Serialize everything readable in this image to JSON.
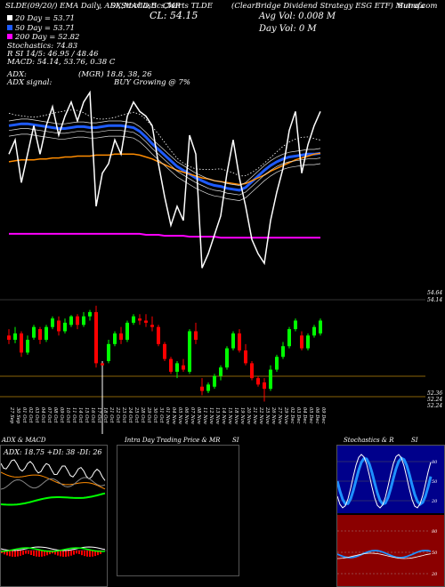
{
  "header": {
    "top_left": "SLDE(09/20/) EMA Daily, ADX,MACD,B",
    "top_mid": "SI,Stochastics,MR",
    "top_company": "Charts TLDE",
    "top_right_1": "(ClearBridge  Dividend Strategy ESG ETF) Munafa",
    "top_right_2": "Sutra.com",
    "cl_label": "CL: 54.15",
    "avg_vol": "Avg Vol: 0.008  M",
    "day_vol": "Day Vol: 0   M"
  },
  "legend": {
    "ema20": "20  Day = 53.71",
    "ema50": "50  Day = 53.71",
    "ema200": "200  Day = 52.82",
    "stochastics": "Stochastics: 74.83",
    "rsi": "R             SI 14/5: 46.95 / 48.46",
    "macd": "MACD: 54.14,  53.76,  0.38  C"
  },
  "adx_block": {
    "adx_label": "ADX:",
    "adx_mgr": "(MGR) 18.8,  38,  26",
    "signal_label": "ADX  signal:",
    "signal_value": "BUY Growing @ 7%"
  },
  "levels": {
    "top_right_1": "54.64",
    "top_right_2": "54.14",
    "bottom_right_1": "52.36",
    "bottom_right_2": "52.24",
    "bottom_right_3": "52.24"
  },
  "dates": [
    "27 Sep",
    "30 Sep",
    "01 Oct",
    "02 Oct",
    "03 Oct",
    "04 Oct",
    "07 Oct",
    "08 Oct",
    "09 Oct",
    "10 Oct",
    "11 Oct",
    "14 Oct",
    "15 Oct",
    "16 Oct",
    "17 Oct",
    "18 Oct",
    "21 Oct",
    "22 Oct",
    "23 Oct",
    "24 Oct",
    "25 Oct",
    "28 Oct",
    "29 Oct",
    "30 Oct",
    "31 Oct",
    "01 Nov",
    "04 Nov",
    "05 Nov",
    "06 Nov",
    "07 Nov",
    "08 Nov",
    "11 Nov",
    "12 Nov",
    "13 Nov",
    "14 Nov",
    "15 Nov",
    "18 Nov",
    "19 Nov",
    "20 Nov",
    "21 Nov",
    "22 Nov",
    "25 Nov",
    "26 Nov",
    "27 Nov",
    "29 Nov",
    "02 Dec",
    "03 Dec",
    "04 Dec",
    "05 Dec",
    "06 Dec",
    "09 Dec"
  ],
  "panels": {
    "adx_title": "ADX  & MACD",
    "adx_values": "ADX: 18.75  +DI: 38  -DI: 26",
    "intra_title": "Intra  Day Trading Price  & MR",
    "intra_si": "SI",
    "stoch_title": "Stochastics & R",
    "stoch_si": "SI",
    "stoch_ticks": [
      "80",
      "50",
      "20"
    ],
    "rsi_ticks": [
      "80",
      "50",
      "20"
    ]
  },
  "colors": {
    "up": "#00ff00",
    "down": "#ff0000",
    "ema_short": "#ffffff",
    "ema_mid": "#1e5bff",
    "ema_long": "#ff8c00",
    "ema_200": "#ff00ff",
    "level_line": "#b8860b",
    "rsi_bg": "#8b0000"
  },
  "chart_data": {
    "type": "candlestick",
    "series": [
      {
        "name": "20  Day",
        "values": [
          54.0,
          54.01,
          54.02,
          54.02,
          54.01,
          54.0,
          53.99,
          53.98,
          53.97,
          53.97,
          53.98,
          53.99,
          53.99,
          53.98,
          53.98,
          53.99,
          54.0,
          54.0,
          54.0,
          53.99,
          53.98,
          53.94,
          53.88,
          53.81,
          53.75,
          53.69,
          53.63,
          53.57,
          53.53,
          53.49,
          53.45,
          53.42,
          53.39,
          53.37,
          53.36,
          53.34,
          53.33,
          53.32,
          53.35,
          53.41,
          53.47,
          53.53,
          53.58,
          53.62,
          53.65,
          53.67,
          53.68,
          53.69,
          53.7,
          53.7,
          53.71
        ]
      },
      {
        "name": "50  Day",
        "values": [
          53.62,
          53.63,
          53.64,
          53.64,
          53.64,
          53.65,
          53.65,
          53.66,
          53.66,
          53.67,
          53.67,
          53.68,
          53.68,
          53.68,
          53.69,
          53.69,
          53.69,
          53.7,
          53.7,
          53.7,
          53.7,
          53.69,
          53.67,
          53.65,
          53.62,
          53.59,
          53.56,
          53.53,
          53.51,
          53.49,
          53.47,
          53.45,
          53.44,
          53.42,
          53.41,
          53.4,
          53.39,
          53.38,
          53.39,
          53.42,
          53.45,
          53.48,
          53.52,
          53.55,
          53.58,
          53.61,
          53.64,
          53.66,
          53.68,
          53.7,
          53.71
        ]
      },
      {
        "name": "200  Day",
        "values": [
          52.86,
          52.86,
          52.86,
          52.86,
          52.86,
          52.86,
          52.86,
          52.86,
          52.86,
          52.86,
          52.86,
          52.86,
          52.86,
          52.86,
          52.86,
          52.86,
          52.86,
          52.86,
          52.86,
          52.86,
          52.86,
          52.86,
          52.85,
          52.85,
          52.85,
          52.84,
          52.84,
          52.84,
          52.84,
          52.83,
          52.83,
          52.83,
          52.83,
          52.83,
          52.82,
          52.82,
          52.82,
          52.82,
          52.82,
          52.82,
          52.82,
          52.82,
          52.82,
          52.82,
          52.82,
          52.82,
          52.82,
          52.82,
          52.82,
          52.82,
          52.82
        ]
      }
    ],
    "candles": [
      {
        "o": 53.8,
        "h": 53.95,
        "l": 53.6,
        "c": 53.7
      },
      {
        "o": 53.7,
        "h": 54.0,
        "l": 53.62,
        "c": 53.85
      },
      {
        "o": 53.85,
        "h": 53.9,
        "l": 53.3,
        "c": 53.4
      },
      {
        "o": 53.4,
        "h": 53.8,
        "l": 53.35,
        "c": 53.7
      },
      {
        "o": 53.75,
        "h": 54.05,
        "l": 53.7,
        "c": 54.0
      },
      {
        "o": 53.95,
        "h": 54.0,
        "l": 53.6,
        "c": 53.7
      },
      {
        "o": 53.7,
        "h": 54.05,
        "l": 53.65,
        "c": 54.0
      },
      {
        "o": 54.0,
        "h": 54.25,
        "l": 53.95,
        "c": 54.2
      },
      {
        "o": 54.15,
        "h": 54.25,
        "l": 53.8,
        "c": 53.9
      },
      {
        "o": 53.9,
        "h": 54.2,
        "l": 53.85,
        "c": 54.1
      },
      {
        "o": 54.05,
        "h": 54.28,
        "l": 54.0,
        "c": 54.25
      },
      {
        "o": 54.25,
        "h": 54.3,
        "l": 53.95,
        "c": 54.05
      },
      {
        "o": 54.05,
        "h": 54.35,
        "l": 54.0,
        "c": 54.25
      },
      {
        "o": 54.25,
        "h": 54.4,
        "l": 54.15,
        "c": 54.35
      },
      {
        "o": 54.35,
        "h": 54.5,
        "l": 53.05,
        "c": 53.15
      },
      {
        "o": 53.15,
        "h": 53.2,
        "l": 50.5,
        "c": 53.1
      },
      {
        "o": 53.2,
        "h": 53.7,
        "l": 53.15,
        "c": 53.6
      },
      {
        "o": 53.6,
        "h": 53.9,
        "l": 53.55,
        "c": 53.85
      },
      {
        "o": 53.85,
        "h": 54.0,
        "l": 53.6,
        "c": 53.7
      },
      {
        "o": 53.7,
        "h": 54.15,
        "l": 53.65,
        "c": 54.1
      },
      {
        "o": 54.1,
        "h": 54.3,
        "l": 54.05,
        "c": 54.25
      },
      {
        "o": 54.2,
        "h": 54.3,
        "l": 54.05,
        "c": 54.15
      },
      {
        "o": 54.15,
        "h": 54.3,
        "l": 54.0,
        "c": 54.1
      },
      {
        "o": 54.05,
        "h": 54.25,
        "l": 53.9,
        "c": 54.0
      },
      {
        "o": 54.0,
        "h": 54.05,
        "l": 53.55,
        "c": 53.6
      },
      {
        "o": 53.6,
        "h": 53.65,
        "l": 53.2,
        "c": 53.25
      },
      {
        "o": 53.25,
        "h": 53.3,
        "l": 52.9,
        "c": 52.95
      },
      {
        "o": 52.95,
        "h": 53.2,
        "l": 52.8,
        "c": 53.15
      },
      {
        "o": 53.1,
        "h": 53.25,
        "l": 52.95,
        "c": 53.0
      },
      {
        "o": 52.95,
        "h": 53.95,
        "l": 52.9,
        "c": 53.9
      },
      {
        "o": 53.9,
        "h": 54.1,
        "l": 53.6,
        "c": 53.7
      },
      {
        "o": 52.6,
        "h": 52.8,
        "l": 52.4,
        "c": 52.5
      },
      {
        "o": 52.5,
        "h": 52.7,
        "l": 52.45,
        "c": 52.65
      },
      {
        "o": 52.6,
        "h": 52.9,
        "l": 52.55,
        "c": 52.85
      },
      {
        "o": 52.85,
        "h": 53.1,
        "l": 52.75,
        "c": 53.05
      },
      {
        "o": 53.05,
        "h": 53.55,
        "l": 53.0,
        "c": 53.5
      },
      {
        "o": 53.5,
        "h": 53.9,
        "l": 53.45,
        "c": 53.85
      },
      {
        "o": 53.85,
        "h": 53.95,
        "l": 53.4,
        "c": 53.45
      },
      {
        "o": 53.45,
        "h": 53.6,
        "l": 53.1,
        "c": 53.15
      },
      {
        "o": 53.15,
        "h": 53.2,
        "l": 52.75,
        "c": 52.8
      },
      {
        "o": 52.8,
        "h": 52.85,
        "l": 52.6,
        "c": 52.65
      },
      {
        "o": 52.7,
        "h": 52.8,
        "l": 52.25,
        "c": 52.55
      },
      {
        "o": 52.55,
        "h": 53.1,
        "l": 52.5,
        "c": 53.0
      },
      {
        "o": 53.0,
        "h": 53.35,
        "l": 52.95,
        "c": 53.3
      },
      {
        "o": 53.3,
        "h": 53.65,
        "l": 53.25,
        "c": 53.55
      },
      {
        "o": 53.55,
        "h": 54.0,
        "l": 53.5,
        "c": 53.95
      },
      {
        "o": 53.95,
        "h": 54.2,
        "l": 53.9,
        "c": 54.15
      },
      {
        "o": 53.8,
        "h": 53.9,
        "l": 53.45,
        "c": 53.5
      },
      {
        "o": 53.5,
        "h": 53.85,
        "l": 53.45,
        "c": 53.8
      },
      {
        "o": 53.8,
        "h": 54.05,
        "l": 53.75,
        "c": 54.0
      },
      {
        "o": 53.85,
        "h": 54.2,
        "l": 53.8,
        "c": 54.15
      }
    ],
    "ylim": [
      52.24,
      54.64
    ]
  }
}
